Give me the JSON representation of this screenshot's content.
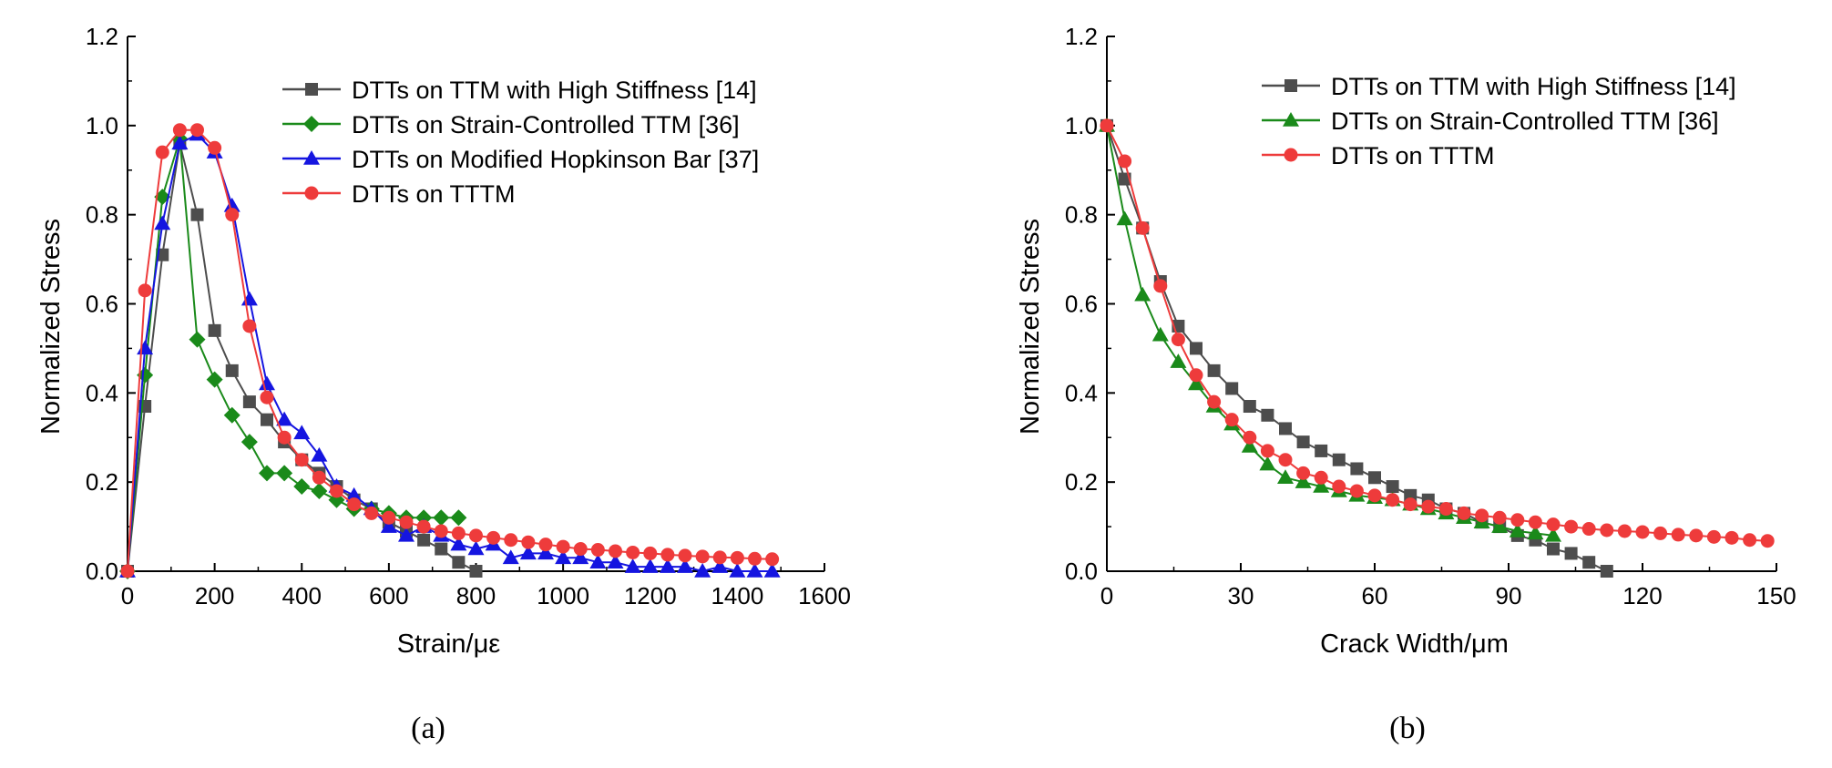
{
  "chart_data": [
    {
      "type": "line",
      "panel_label": "(a)",
      "xlabel": "Strain/με",
      "ylabel": "Normalized Stress",
      "xlim": [
        0,
        1600
      ],
      "ylim": [
        0,
        1.2
      ],
      "xticks": [
        0,
        200,
        400,
        600,
        800,
        1000,
        1200,
        1400,
        1600
      ],
      "yticks": [
        0.0,
        0.2,
        0.4,
        0.6,
        0.8,
        1.0,
        1.2
      ],
      "xtick_labels": [
        "0",
        "200",
        "400",
        "600",
        "800",
        "1000",
        "1200",
        "1400",
        "1600"
      ],
      "ytick_labels": [
        "0.0",
        "0.2",
        "0.4",
        "0.6",
        "0.8",
        "1.0",
        "1.2"
      ],
      "grid": false,
      "legend_position": "top-right",
      "series": [
        {
          "name": "DTTs on TTM with High Stiffness [14]",
          "color": "#4d4d4d",
          "marker": "square",
          "x": [
            0,
            40,
            80,
            120,
            160,
            200,
            240,
            280,
            320,
            360,
            400,
            440,
            480,
            520,
            560,
            600,
            640,
            680,
            720,
            760,
            800
          ],
          "y": [
            0,
            0.37,
            0.71,
            0.96,
            0.8,
            0.54,
            0.45,
            0.38,
            0.34,
            0.29,
            0.25,
            0.22,
            0.19,
            0.16,
            0.14,
            0.11,
            0.09,
            0.07,
            0.05,
            0.02,
            0.0
          ]
        },
        {
          "name": "DTTs on Strain-Controlled TTM [36]",
          "color": "#1a8a1a",
          "marker": "diamond",
          "x": [
            0,
            40,
            80,
            120,
            160,
            200,
            240,
            280,
            320,
            360,
            400,
            440,
            480,
            520,
            560,
            600,
            640,
            680,
            720,
            760
          ],
          "y": [
            0,
            0.44,
            0.84,
            0.97,
            0.52,
            0.43,
            0.35,
            0.29,
            0.22,
            0.22,
            0.19,
            0.18,
            0.16,
            0.14,
            0.14,
            0.13,
            0.12,
            0.12,
            0.12,
            0.12
          ]
        },
        {
          "name": "DTTs on Modified Hopkinson Bar [37]",
          "color": "#1515e0",
          "marker": "triangle",
          "x": [
            0,
            40,
            80,
            120,
            160,
            200,
            240,
            280,
            320,
            360,
            400,
            440,
            480,
            520,
            560,
            600,
            640,
            680,
            720,
            760,
            800,
            840,
            880,
            920,
            960,
            1000,
            1040,
            1080,
            1120,
            1160,
            1200,
            1240,
            1280,
            1320,
            1360,
            1400,
            1440,
            1480
          ],
          "y": [
            0,
            0.5,
            0.78,
            0.96,
            0.98,
            0.94,
            0.82,
            0.61,
            0.42,
            0.34,
            0.31,
            0.26,
            0.19,
            0.17,
            0.14,
            0.1,
            0.08,
            0.1,
            0.08,
            0.06,
            0.05,
            0.06,
            0.03,
            0.04,
            0.04,
            0.03,
            0.03,
            0.02,
            0.02,
            0.01,
            0.01,
            0.01,
            0.01,
            0.0,
            0.01,
            0.0,
            0.0,
            0.0
          ]
        },
        {
          "name": "DTTs on TTTM",
          "color": "#ee3b3b",
          "marker": "circle",
          "x": [
            0,
            40,
            80,
            120,
            160,
            200,
            240,
            280,
            320,
            360,
            400,
            440,
            480,
            520,
            560,
            600,
            640,
            680,
            720,
            760,
            800,
            840,
            880,
            920,
            960,
            1000,
            1040,
            1080,
            1120,
            1160,
            1200,
            1240,
            1280,
            1320,
            1360,
            1400,
            1440,
            1480
          ],
          "y": [
            0,
            0.63,
            0.94,
            0.99,
            0.99,
            0.95,
            0.8,
            0.55,
            0.39,
            0.3,
            0.25,
            0.21,
            0.18,
            0.15,
            0.13,
            0.12,
            0.11,
            0.1,
            0.09,
            0.085,
            0.08,
            0.075,
            0.07,
            0.065,
            0.06,
            0.055,
            0.05,
            0.048,
            0.045,
            0.042,
            0.04,
            0.037,
            0.035,
            0.033,
            0.031,
            0.03,
            0.028,
            0.027
          ]
        }
      ]
    },
    {
      "type": "line",
      "panel_label": "(b)",
      "xlabel": "Crack Width/μm",
      "ylabel": "Normalized Stress",
      "xlim": [
        0,
        150
      ],
      "ylim": [
        0,
        1.2
      ],
      "xticks": [
        0,
        30,
        60,
        90,
        120,
        150
      ],
      "yticks": [
        0.0,
        0.2,
        0.4,
        0.6,
        0.8,
        1.0,
        1.2
      ],
      "xtick_labels": [
        "0",
        "30",
        "60",
        "90",
        "120",
        "150"
      ],
      "ytick_labels": [
        "0.0",
        "0.2",
        "0.4",
        "0.6",
        "0.8",
        "1.0",
        "1.2"
      ],
      "grid": false,
      "legend_position": "top-right",
      "series": [
        {
          "name": "DTTs on TTM with High Stiffness [14]",
          "color": "#4d4d4d",
          "marker": "square",
          "x": [
            0,
            4,
            8,
            12,
            16,
            20,
            24,
            28,
            32,
            36,
            40,
            44,
            48,
            52,
            56,
            60,
            64,
            68,
            72,
            76,
            80,
            84,
            88,
            92,
            96,
            100,
            104,
            108,
            112
          ],
          "y": [
            1.0,
            0.88,
            0.77,
            0.65,
            0.55,
            0.5,
            0.45,
            0.41,
            0.37,
            0.35,
            0.32,
            0.29,
            0.27,
            0.25,
            0.23,
            0.21,
            0.19,
            0.17,
            0.16,
            0.14,
            0.13,
            0.11,
            0.1,
            0.08,
            0.07,
            0.05,
            0.04,
            0.02,
            0.0
          ]
        },
        {
          "name": "DTTs on Strain-Controlled TTM [36]",
          "color": "#1a8a1a",
          "marker": "triangle",
          "x": [
            0,
            4,
            8,
            12,
            16,
            20,
            24,
            28,
            32,
            36,
            40,
            44,
            48,
            52,
            56,
            60,
            64,
            68,
            72,
            76,
            80,
            84,
            88,
            92,
            96,
            100
          ],
          "y": [
            1.0,
            0.79,
            0.62,
            0.53,
            0.47,
            0.42,
            0.37,
            0.33,
            0.28,
            0.24,
            0.21,
            0.2,
            0.19,
            0.18,
            0.17,
            0.165,
            0.16,
            0.15,
            0.14,
            0.13,
            0.12,
            0.11,
            0.1,
            0.09,
            0.085,
            0.08
          ]
        },
        {
          "name": "DTTs on TTTM",
          "color": "#ee3b3b",
          "marker": "circle",
          "x": [
            0,
            4,
            8,
            12,
            16,
            20,
            24,
            28,
            32,
            36,
            40,
            44,
            48,
            52,
            56,
            60,
            64,
            68,
            72,
            76,
            80,
            84,
            88,
            92,
            96,
            100,
            104,
            108,
            112,
            116,
            120,
            124,
            128,
            132,
            136,
            140,
            144,
            148
          ],
          "y": [
            1.0,
            0.92,
            0.77,
            0.64,
            0.52,
            0.44,
            0.38,
            0.34,
            0.3,
            0.27,
            0.25,
            0.22,
            0.21,
            0.19,
            0.18,
            0.17,
            0.16,
            0.15,
            0.145,
            0.14,
            0.13,
            0.125,
            0.12,
            0.115,
            0.11,
            0.105,
            0.1,
            0.095,
            0.092,
            0.09,
            0.088,
            0.085,
            0.082,
            0.08,
            0.077,
            0.075,
            0.07,
            0.068
          ]
        }
      ]
    }
  ]
}
